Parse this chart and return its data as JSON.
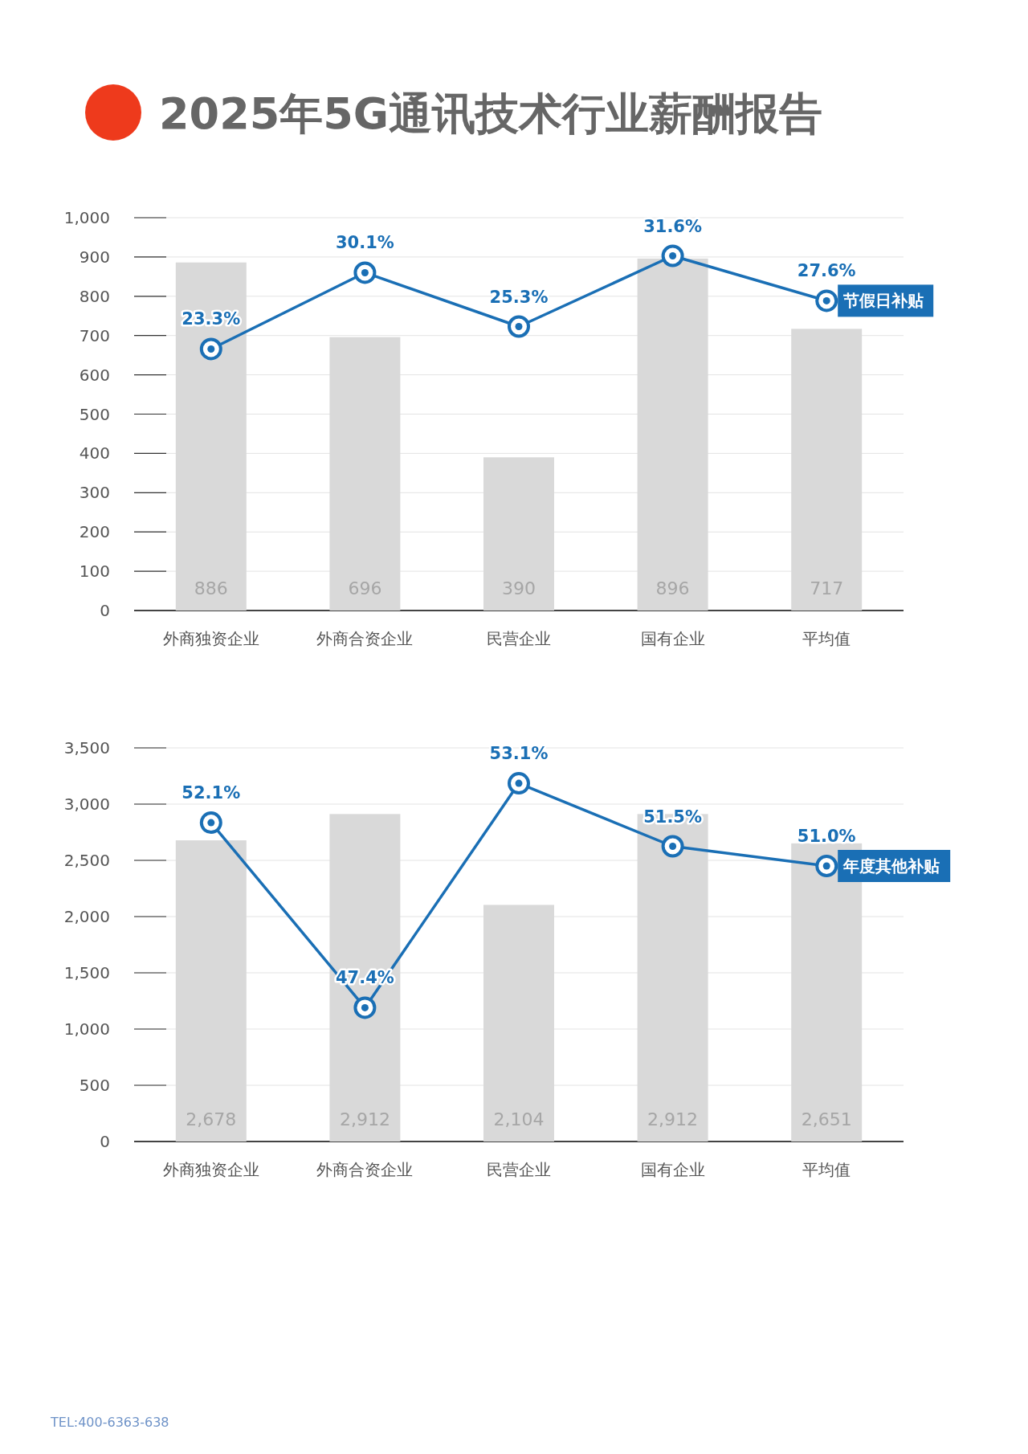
{
  "chart_data": [
    {
      "type": "bar",
      "title": "2025年5G通讯技术行业薪酬报告",
      "categories": [
        "外商独资企业",
        "外商合资企业",
        "民营企业",
        "国有企业",
        "平均值"
      ],
      "ylim": [
        0,
        1000
      ],
      "yticks": [
        {
          "value": 0,
          "label": "0"
        },
        {
          "value": 100,
          "label": "100"
        },
        {
          "value": 200,
          "label": "200"
        },
        {
          "value": 300,
          "label": "300"
        },
        {
          "value": 400,
          "label": "400"
        },
        {
          "value": 500,
          "label": "500"
        },
        {
          "value": 600,
          "label": "600"
        },
        {
          "value": 700,
          "label": "700"
        },
        {
          "value": 800,
          "label": "800"
        },
        {
          "value": 900,
          "label": "900"
        },
        {
          "value": 1000,
          "label": "1,000"
        }
      ],
      "y2lim": [
        0,
        35
      ],
      "grid": "y",
      "legend": false,
      "series": [
        {
          "color": "#d9d9d9",
          "values": [
            886,
            696,
            390,
            896,
            717
          ],
          "value_labels": [
            "886",
            "696",
            "390",
            "896",
            "717"
          ]
        },
        {
          "type": "line",
          "axis": "y2",
          "name": "节假日补贴",
          "color": "#1a6fb5",
          "marker": "circle",
          "values": [
            23.3,
            30.1,
            25.3,
            31.6,
            27.6
          ],
          "value_labels": [
            "23.3%",
            "30.1%",
            "25.3%",
            "31.6%",
            "27.6%"
          ]
        }
      ]
    },
    {
      "type": "bar",
      "categories": [
        "外商独资企业",
        "外商合资企业",
        "民营企业",
        "国有企业",
        "平均值"
      ],
      "ylim": [
        0,
        3500
      ],
      "yticks": [
        {
          "value": 0,
          "label": "0"
        },
        {
          "value": 500,
          "label": "500"
        },
        {
          "value": 1000,
          "label": "1,000"
        },
        {
          "value": 1500,
          "label": "1,500"
        },
        {
          "value": 2000,
          "label": "2,000"
        },
        {
          "value": 2500,
          "label": "2,500"
        },
        {
          "value": 3000,
          "label": "3,000"
        },
        {
          "value": 3500,
          "label": "3,500"
        }
      ],
      "y2lim": [
        44,
        54
      ],
      "grid": "y",
      "legend": false,
      "annotations": [
        "TEL:400-6363-638"
      ],
      "series": [
        {
          "color": "#d9d9d9",
          "values": [
            2678,
            2912,
            2104,
            2912,
            2651
          ],
          "value_labels": [
            "2,678",
            "2,912",
            "2,104",
            "2,912",
            "2,651"
          ]
        },
        {
          "type": "line",
          "axis": "y2",
          "name": "年度其他补贴",
          "color": "#1a6fb5",
          "marker": "circle",
          "values": [
            52.1,
            47.4,
            53.1,
            51.5,
            51.0
          ],
          "value_labels": [
            "52.1%",
            "47.4%",
            "53.1%",
            "51.5%",
            "51.0%"
          ]
        }
      ]
    }
  ]
}
